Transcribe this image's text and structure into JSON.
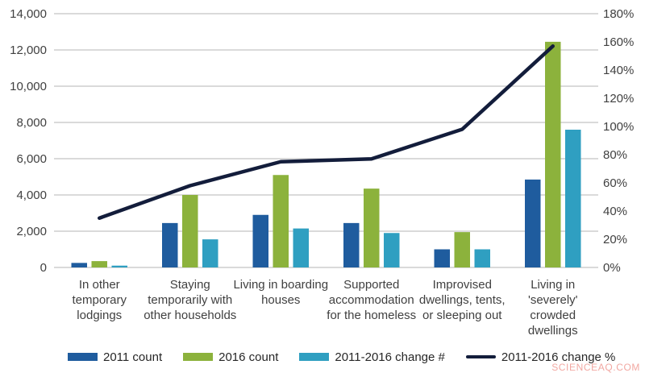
{
  "watermark": "SCIENCEAQ.COM",
  "chart_data": {
    "type": "bar",
    "title": "",
    "xlabel": "",
    "ylabel": "",
    "grid": true,
    "legend_position": "bottom",
    "categories": [
      "In other\ntemporary\nlodgings",
      "Staying\ntemporarily with\nother households",
      "Living in boarding\nhouses",
      "Supported\naccommodation\nfor the homeless",
      "Improvised\ndwellings, tents,\nor sleeping out",
      "Living in\n'severely'\ncrowded\ndwellings"
    ],
    "series": [
      {
        "name": "2011 count",
        "type": "bar",
        "axis": "left",
        "color": "#1f5c9e",
        "values": [
          250,
          2450,
          2900,
          2450,
          1000,
          4850
        ]
      },
      {
        "name": "2016 count",
        "type": "bar",
        "axis": "left",
        "color": "#8cb23c",
        "values": [
          350,
          4000,
          5100,
          4350,
          1950,
          12450
        ]
      },
      {
        "name": "2011-2016 change #",
        "type": "bar",
        "axis": "left",
        "color": "#2f9fc1",
        "values": [
          100,
          1550,
          2150,
          1900,
          1000,
          7600
        ]
      },
      {
        "name": "2011-2016 change %",
        "type": "line",
        "axis": "right",
        "color": "#131d3b",
        "values": [
          35,
          58,
          75,
          77,
          98,
          157
        ]
      }
    ],
    "left_axis": {
      "min": 0,
      "max": 14000,
      "step": 2000,
      "ticks": [
        "14,000",
        "12,000",
        "10,000",
        "8,000",
        "6,000",
        "4,000",
        "2,000",
        "0"
      ]
    },
    "right_axis": {
      "min": 0,
      "max": 180,
      "step": 20,
      "ticks": [
        "180%",
        "160%",
        "140%",
        "120%",
        "100%",
        "80%",
        "60%",
        "40%",
        "20%",
        "0%"
      ]
    },
    "gridline_color": "#c3c3c3"
  }
}
